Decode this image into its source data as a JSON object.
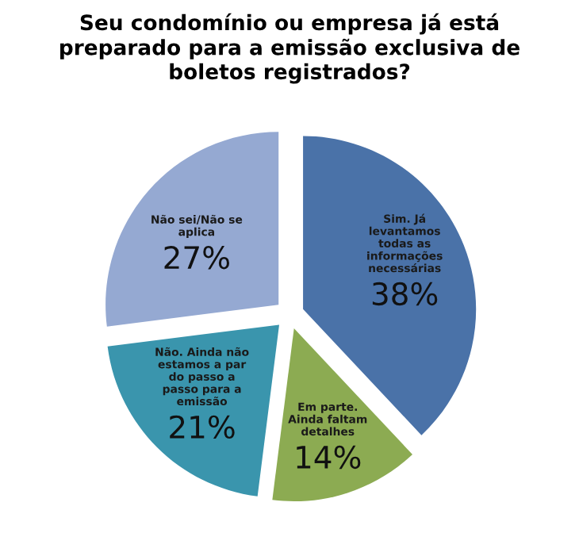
{
  "chart_data": {
    "type": "pie",
    "title": "Seu condomínio ou empresa já está preparado para a emissão exclusiva de boletos registrados?",
    "categories": [
      "Sim. Já levantamos todas as informações necessárias",
      "Em parte. Ainda faltam detalhes",
      "Não. Ainda não estamos a par do passo a passo para a emissão",
      "Não sei/Não se aplica"
    ],
    "values": [
      38,
      14,
      21,
      27
    ],
    "value_labels": [
      "38%",
      "14%",
      "21%",
      "27%"
    ],
    "colors": [
      "#4a72a8",
      "#8cab52",
      "#3a95ad",
      "#95a9d2"
    ]
  }
}
